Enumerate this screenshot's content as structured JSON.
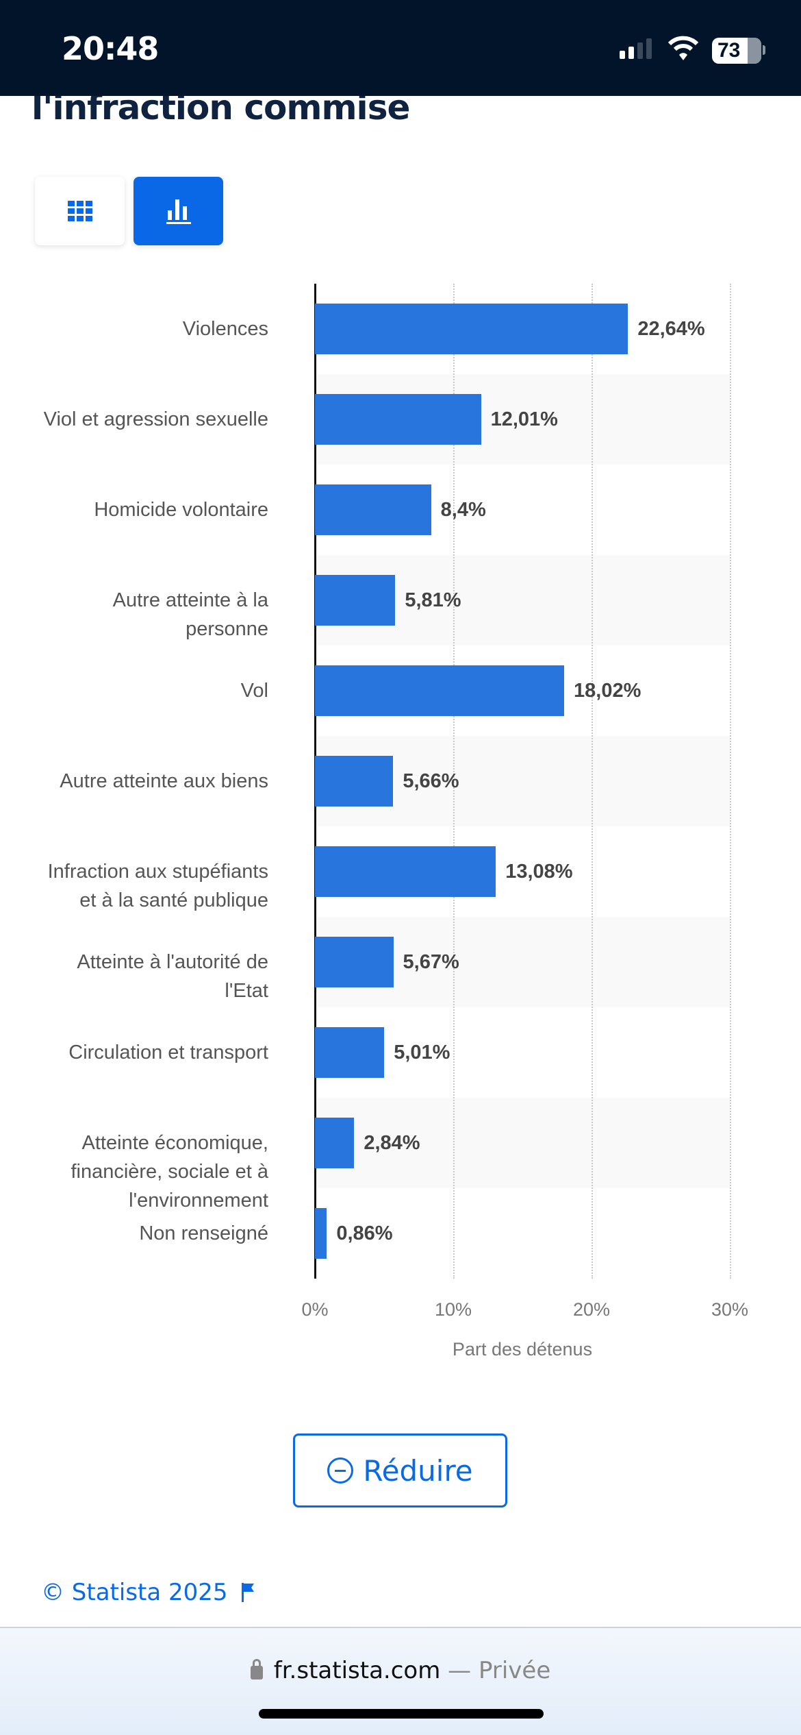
{
  "status_bar": {
    "time": "20:48",
    "battery": "73"
  },
  "header": {
    "title": "l'infraction commise"
  },
  "view_toggle": {
    "table_icon": "grid-table-icon",
    "chart_icon": "bar-chart-icon",
    "active": "chart"
  },
  "chart_data": {
    "type": "bar",
    "orientation": "horizontal",
    "categories": [
      "Violences",
      "Viol et agression sexuelle",
      "Homicide volontaire",
      "Autre atteinte à la personne",
      "Vol",
      "Autre atteinte aux biens",
      "Infraction aux stupéfiants et à la santé publique",
      "Atteinte à l'autorité de l'Etat",
      "Circulation et transport",
      "Atteinte économique, financière, sociale et à l'environnement",
      "Non renseigné"
    ],
    "values": [
      22.64,
      12.01,
      8.4,
      5.81,
      18.02,
      5.66,
      13.08,
      5.67,
      5.01,
      2.84,
      0.86
    ],
    "value_labels": [
      "22,64%",
      "12,01%",
      "8,4%",
      "5,81%",
      "18,02%",
      "5,66%",
      "13,08%",
      "5,67%",
      "5,01%",
      "2,84%",
      "0,86%"
    ],
    "xlabel": "Part des détenus",
    "xlim": [
      0,
      30
    ],
    "ticks": [
      "0%",
      "10%",
      "20%",
      "30%"
    ],
    "grid": true,
    "bar_color": "#2876dd"
  },
  "actions": {
    "reduce_label": "Réduire"
  },
  "footer": {
    "copyright": "© Statista 2025"
  },
  "browser": {
    "domain": "fr.statista.com",
    "mode": "— Privée"
  }
}
